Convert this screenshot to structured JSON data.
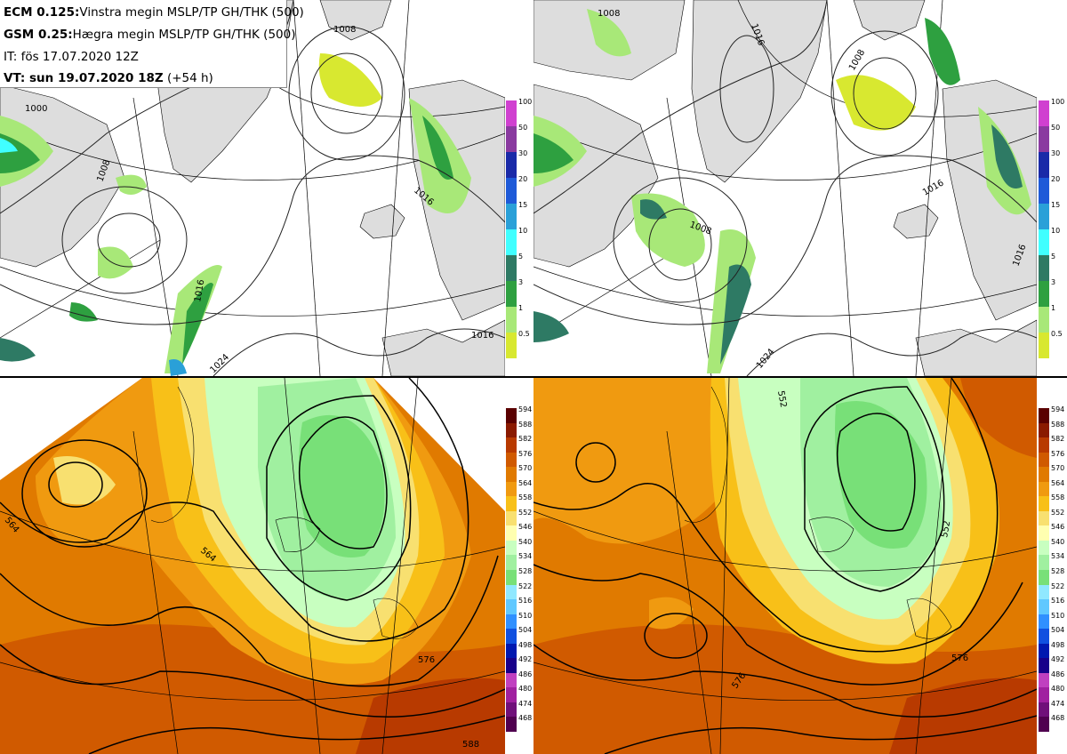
{
  "header": {
    "line1_bold": "ECM 0.125:",
    "line1_text": "Vinstra megin MSLP/TP GH/THK (500)",
    "line2_bold": "GSM 0.25:",
    "line2_text": "Hægra megin MSLP/TP GH/THK (500)",
    "line3_text": "IT: fös 17.07.2020 12Z",
    "line4_bold": "VT: sun 19.07.2020 18Z",
    "line4_text": "(+54 h)"
  },
  "precip_legend": {
    "levels": [
      "100",
      "50",
      "30",
      "20",
      "15",
      "10",
      "5",
      "3",
      "1",
      "0.5"
    ],
    "colors": [
      "#d040d0",
      "#8a3aa0",
      "#1a2aa8",
      "#1e5ad8",
      "#2aa0d8",
      "#40ffff",
      "#2e7a64",
      "#2ea040",
      "#a8e878",
      "#d8e830"
    ]
  },
  "thickness_legend": {
    "levels": [
      "594",
      "588",
      "582",
      "576",
      "570",
      "564",
      "558",
      "552",
      "546",
      "540",
      "534",
      "528",
      "522",
      "516",
      "510",
      "504",
      "498",
      "492",
      "486",
      "480",
      "474",
      "468"
    ],
    "colors": [
      "#5a0000",
      "#8a1a00",
      "#b83a00",
      "#d05a00",
      "#e07a00",
      "#f09a10",
      "#f8c018",
      "#f8e070",
      "#ffffb0",
      "#c8ffc0",
      "#a0f0a0",
      "#78e078",
      "#90e8ff",
      "#60c8ff",
      "#3090ff",
      "#1050e0",
      "#0018b0",
      "#18008a",
      "#c040c0",
      "#a020a0",
      "#70107a",
      "#500050"
    ]
  },
  "top_left": {
    "contour_labels": [
      "1008",
      "1008",
      "1000",
      "1016",
      "1016",
      "1016",
      "1024"
    ]
  },
  "top_right": {
    "contour_labels": [
      "1008",
      "1016",
      "1008",
      "1016",
      "1016",
      "1024",
      "1008"
    ]
  },
  "bottom_left": {
    "contour_labels": [
      "564",
      "564",
      "576",
      "588"
    ]
  },
  "bottom_right": {
    "contour_labels": [
      "552",
      "552",
      "576",
      "576"
    ]
  }
}
